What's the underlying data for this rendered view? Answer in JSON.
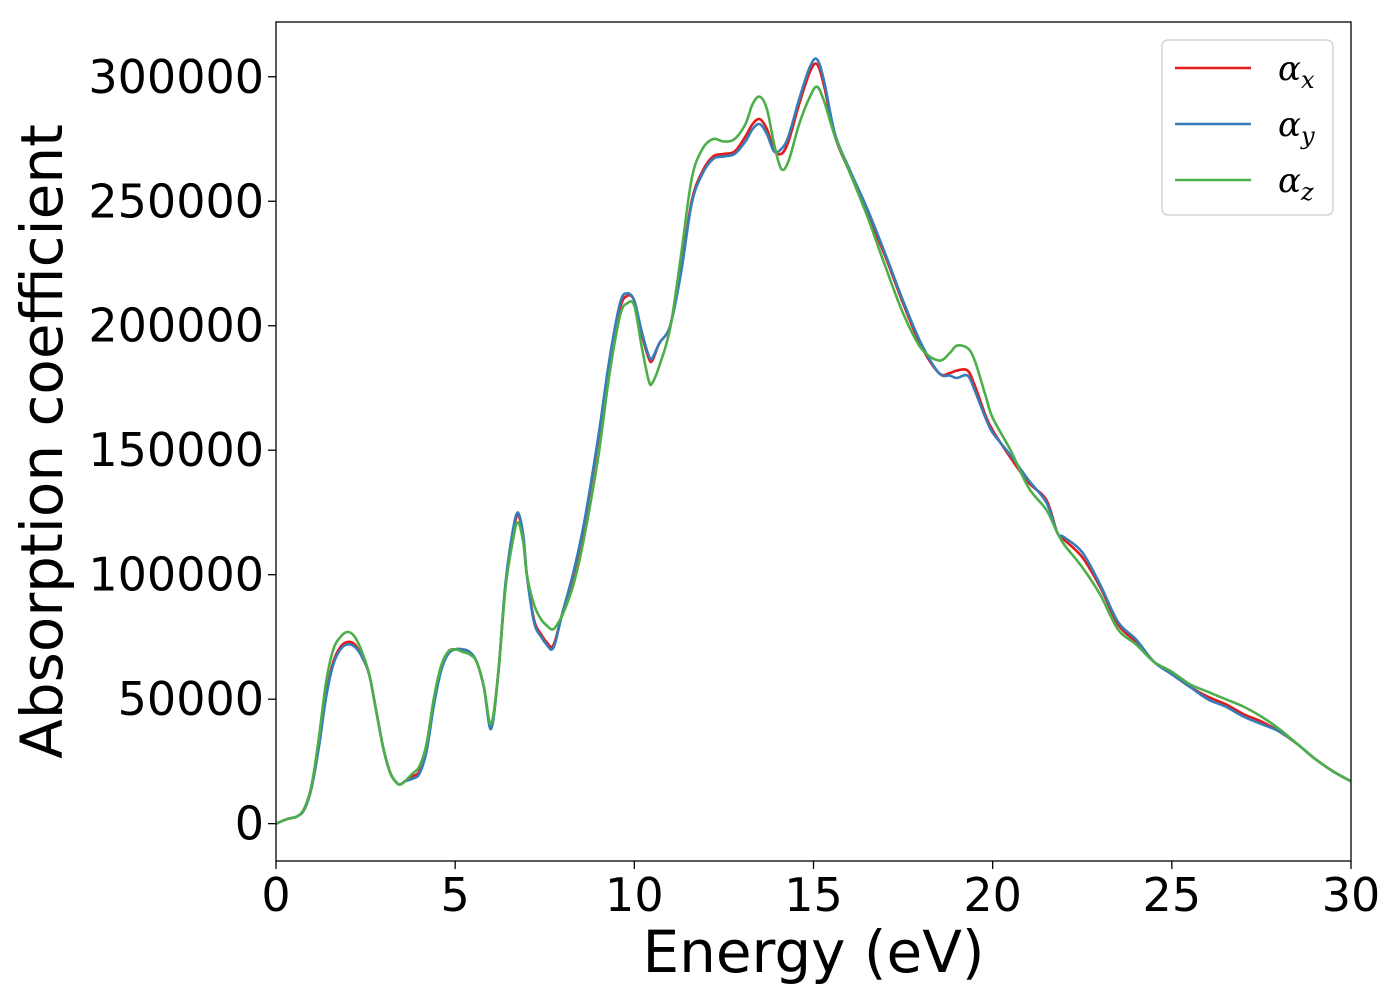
{
  "chart_data": {
    "type": "line",
    "title": "",
    "xlabel": "Energy (eV)",
    "ylabel": "Absorption coefficient",
    "xlim": [
      0,
      30
    ],
    "ylim": [
      -15000,
      322000
    ],
    "xticks": [
      0,
      5,
      10,
      15,
      20,
      25,
      30
    ],
    "xtick_labels": [
      "0",
      "5",
      "10",
      "15",
      "20",
      "25",
      "30"
    ],
    "yticks": [
      0,
      50000,
      100000,
      150000,
      200000,
      250000,
      300000
    ],
    "ytick_labels": [
      "0",
      "50000",
      "100000",
      "150000",
      "200000",
      "250000",
      "300000"
    ],
    "grid": false,
    "legend_position": "top-right",
    "series": [
      {
        "name": "αx",
        "symbol": "α",
        "subscript": "x",
        "color": "#e41a1c",
        "x": [
          0,
          0.3,
          0.6,
          0.8,
          1.0,
          1.2,
          1.4,
          1.6,
          1.8,
          2.0,
          2.2,
          2.4,
          2.6,
          2.8,
          3.0,
          3.2,
          3.4,
          3.5,
          3.6,
          3.8,
          4.0,
          4.2,
          4.4,
          4.6,
          4.8,
          5.0,
          5.2,
          5.4,
          5.6,
          5.8,
          6.0,
          6.2,
          6.4,
          6.6,
          6.75,
          6.9,
          7.0,
          7.2,
          7.4,
          7.6,
          7.7,
          7.8,
          8.0,
          8.3,
          8.6,
          9.0,
          9.3,
          9.6,
          9.8,
          10.0,
          10.2,
          10.4,
          10.5,
          10.7,
          11.0,
          11.3,
          11.6,
          11.9,
          12.2,
          12.5,
          12.8,
          13.1,
          13.3,
          13.5,
          13.7,
          13.9,
          14.1,
          14.3,
          14.6,
          14.9,
          15.1,
          15.3,
          15.6,
          16.0,
          16.5,
          17.0,
          17.5,
          18.0,
          18.5,
          18.8,
          19.0,
          19.3,
          19.5,
          19.8,
          20.0,
          20.5,
          21.0,
          21.5,
          21.8,
          22.0,
          22.5,
          23.0,
          23.5,
          24.0,
          24.5,
          25.0,
          25.5,
          26.0,
          26.5,
          27.0,
          27.5,
          28.0,
          28.5,
          29.0,
          29.5,
          30.0
        ],
        "y": [
          0,
          1800,
          3000,
          6000,
          15000,
          32000,
          52000,
          65000,
          71000,
          73000,
          72000,
          67000,
          60000,
          45000,
          30000,
          20000,
          16000,
          16000,
          17000,
          19000,
          21000,
          30000,
          48000,
          62000,
          69000,
          70000,
          70000,
          69000,
          65000,
          55000,
          39000,
          60000,
          95000,
          115000,
          124000,
          115000,
          100000,
          82000,
          76000,
          72000,
          71000,
          74000,
          85000,
          100000,
          120000,
          155000,
          185000,
          207000,
          212000,
          210000,
          197000,
          187000,
          186000,
          193000,
          200000,
          222000,
          250000,
          262000,
          268000,
          269000,
          270000,
          276000,
          281000,
          283000,
          279000,
          271000,
          269000,
          274000,
          289000,
          302000,
          305000,
          296000,
          276000,
          262000,
          245000,
          228000,
          209000,
          192000,
          181000,
          181000,
          182000,
          182000,
          176000,
          164000,
          158000,
          147000,
          137000,
          130000,
          117000,
          114000,
          107000,
          95000,
          80000,
          73000,
          65000,
          60000,
          55000,
          51000,
          48000,
          44000,
          41000,
          37000,
          32000,
          26000,
          21000,
          17000
        ]
      },
      {
        "name": "αy",
        "symbol": "α",
        "subscript": "y",
        "color": "#377eb8",
        "x": [
          0,
          0.3,
          0.6,
          0.8,
          1.0,
          1.2,
          1.4,
          1.6,
          1.8,
          2.0,
          2.2,
          2.4,
          2.6,
          2.8,
          3.0,
          3.2,
          3.4,
          3.5,
          3.6,
          3.8,
          4.0,
          4.2,
          4.4,
          4.6,
          4.8,
          5.0,
          5.2,
          5.4,
          5.6,
          5.8,
          6.0,
          6.2,
          6.4,
          6.6,
          6.75,
          6.9,
          7.0,
          7.2,
          7.4,
          7.6,
          7.7,
          7.8,
          8.0,
          8.3,
          8.6,
          9.0,
          9.3,
          9.6,
          9.8,
          10.0,
          10.2,
          10.4,
          10.5,
          10.7,
          11.0,
          11.3,
          11.6,
          11.9,
          12.2,
          12.5,
          12.8,
          13.1,
          13.3,
          13.5,
          13.7,
          13.9,
          14.1,
          14.3,
          14.6,
          14.9,
          15.1,
          15.3,
          15.6,
          16.0,
          16.5,
          17.0,
          17.5,
          18.0,
          18.5,
          18.8,
          19.0,
          19.3,
          19.5,
          19.8,
          20.0,
          20.5,
          21.0,
          21.5,
          21.8,
          22.0,
          22.5,
          23.0,
          23.5,
          24.0,
          24.5,
          25.0,
          25.5,
          26.0,
          26.5,
          27.0,
          27.5,
          28.0,
          28.5,
          29.0,
          29.5,
          30.0
        ],
        "y": [
          0,
          1800,
          3000,
          6000,
          15000,
          31000,
          51000,
          64000,
          70000,
          72000,
          71000,
          67000,
          60000,
          45000,
          30000,
          20000,
          16000,
          16000,
          17000,
          18000,
          20000,
          29000,
          47000,
          61000,
          68000,
          70000,
          70000,
          69000,
          65000,
          55000,
          38000,
          60000,
          96000,
          117000,
          125000,
          116000,
          100000,
          81000,
          75000,
          71000,
          70000,
          73000,
          85000,
          101000,
          121000,
          156000,
          186000,
          209000,
          213000,
          210000,
          198000,
          188000,
          187000,
          193000,
          200000,
          221000,
          249000,
          261000,
          267000,
          268000,
          269000,
          274000,
          279000,
          281000,
          277000,
          270000,
          271000,
          276000,
          291000,
          304000,
          307000,
          298000,
          277000,
          263000,
          247000,
          229000,
          210000,
          193000,
          181000,
          180000,
          179000,
          180000,
          174000,
          163000,
          157000,
          148000,
          138000,
          129000,
          117000,
          115000,
          109000,
          96000,
          81000,
          74000,
          65000,
          60000,
          55000,
          50000,
          47000,
          43000,
          40000,
          37000,
          32000,
          26000,
          21000,
          17000
        ]
      },
      {
        "name": "αz",
        "symbol": "α",
        "subscript": "z",
        "color": "#4daf4a",
        "x": [
          0,
          0.3,
          0.6,
          0.8,
          1.0,
          1.2,
          1.4,
          1.6,
          1.8,
          2.0,
          2.2,
          2.4,
          2.6,
          2.8,
          3.0,
          3.2,
          3.4,
          3.5,
          3.6,
          3.8,
          4.0,
          4.2,
          4.4,
          4.6,
          4.8,
          5.0,
          5.2,
          5.4,
          5.6,
          5.8,
          6.0,
          6.2,
          6.4,
          6.6,
          6.75,
          6.9,
          7.0,
          7.2,
          7.4,
          7.6,
          7.7,
          7.8,
          8.0,
          8.3,
          8.6,
          9.0,
          9.3,
          9.6,
          9.8,
          10.0,
          10.2,
          10.4,
          10.5,
          10.7,
          11.0,
          11.3,
          11.6,
          11.9,
          12.2,
          12.5,
          12.8,
          13.1,
          13.3,
          13.5,
          13.7,
          13.9,
          14.1,
          14.3,
          14.6,
          14.9,
          15.1,
          15.3,
          15.6,
          16.0,
          16.5,
          17.0,
          17.5,
          18.0,
          18.5,
          18.8,
          19.0,
          19.3,
          19.5,
          19.8,
          20.0,
          20.5,
          21.0,
          21.5,
          21.8,
          22.0,
          22.5,
          23.0,
          23.5,
          24.0,
          24.5,
          25.0,
          25.5,
          26.0,
          26.5,
          27.0,
          27.5,
          28.0,
          28.5,
          29.0,
          29.5,
          30.0
        ],
        "y": [
          0,
          1800,
          3000,
          6500,
          16000,
          35000,
          57000,
          70000,
          75000,
          77000,
          75000,
          69000,
          60000,
          45000,
          30000,
          20000,
          16000,
          16000,
          17000,
          20000,
          23000,
          32000,
          50000,
          63000,
          69000,
          70000,
          69000,
          68000,
          65000,
          55000,
          40000,
          60000,
          94000,
          113000,
          121000,
          113000,
          100000,
          88000,
          82000,
          79000,
          78000,
          79000,
          84000,
          96000,
          115000,
          148000,
          180000,
          204000,
          209000,
          208000,
          192000,
          178000,
          177000,
          184000,
          199000,
          228000,
          259000,
          271000,
          275000,
          274000,
          275000,
          281000,
          289000,
          292000,
          287000,
          273000,
          263000,
          266000,
          281000,
          292000,
          296000,
          290000,
          276000,
          262000,
          244000,
          224000,
          205000,
          191000,
          186000,
          189000,
          192000,
          191000,
          186000,
          172000,
          163000,
          150000,
          135000,
          126000,
          117000,
          112000,
          103000,
          92000,
          78000,
          72000,
          65000,
          61000,
          56000,
          53000,
          50000,
          47000,
          43000,
          38000,
          32000,
          26000,
          21000,
          17000
        ]
      }
    ]
  }
}
